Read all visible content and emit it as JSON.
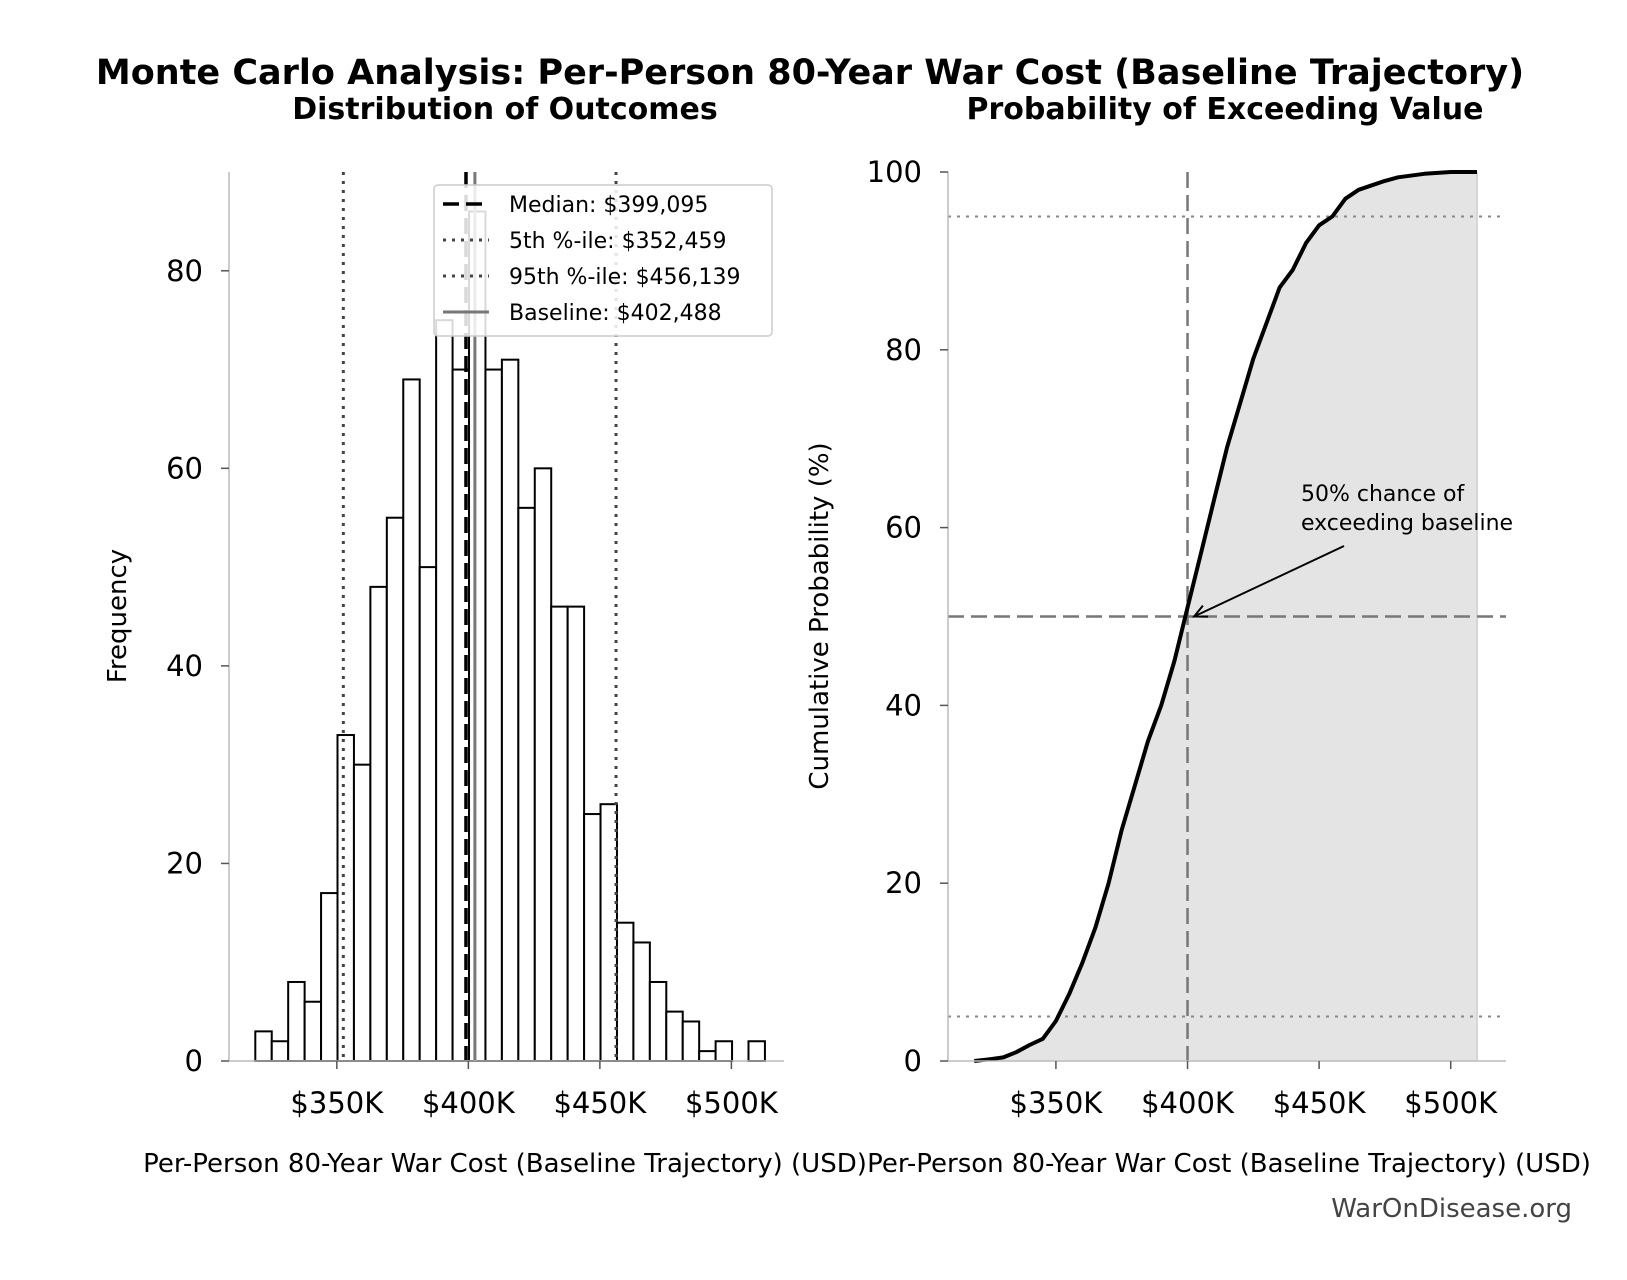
{
  "suptitle": "Monte Carlo Analysis: Per-Person 80-Year War Cost (Baseline Trajectory)",
  "watermark": "WarOnDisease.org",
  "colors": {
    "median": "#000000",
    "percentile": "#444444",
    "baseline": "#777777",
    "fill": "#e4e4e4",
    "reference": "#777777",
    "reference_dotted": "#888888"
  },
  "chart_data": [
    {
      "type": "bar",
      "title": "Distribution of Outcomes",
      "xlabel": "Per-Person 80-Year War Cost (Baseline Trajectory) (USD)",
      "ylabel": "Frequency",
      "xlim": [
        309000,
        520000
      ],
      "ylim": [
        0,
        90
      ],
      "x_ticks": [
        350000,
        400000,
        450000,
        500000
      ],
      "x_tick_labels": [
        "$350K",
        "$400K",
        "$450K",
        "$500K"
      ],
      "y_ticks": [
        0,
        20,
        40,
        60,
        80
      ],
      "y_tick_labels": [
        "0",
        "20",
        "40",
        "60",
        "80"
      ],
      "bin_width": 6250,
      "bins_start": 319000,
      "values": [
        3,
        2,
        8,
        6,
        17,
        33,
        30,
        48,
        55,
        69,
        50,
        75,
        70,
        86,
        70,
        71,
        56,
        60,
        46,
        46,
        25,
        26,
        14,
        12,
        8,
        5,
        4,
        1,
        2,
        0,
        2
      ],
      "reference_lines": [
        {
          "label": "Median: $399,095",
          "x": 399095,
          "style": "dashed"
        },
        {
          "label": "5th %-ile: $352,459",
          "x": 352459,
          "style": "dotted"
        },
        {
          "label": "95th %-ile: $456,139",
          "x": 456139,
          "style": "dotted"
        },
        {
          "label": "Baseline: $402,488",
          "x": 402488,
          "style": "solid"
        }
      ],
      "legend_position": "top-right"
    },
    {
      "type": "area",
      "title": "Probability of Exceeding Value",
      "xlabel": "Per-Person 80-Year War Cost (Baseline Trajectory) (USD)",
      "ylabel": "Cumulative Probability (%)",
      "xlim": [
        309000,
        521000
      ],
      "ylim": [
        0,
        100
      ],
      "x_ticks": [
        350000,
        400000,
        450000,
        500000
      ],
      "x_tick_labels": [
        "$350K",
        "$400K",
        "$450K",
        "$500K"
      ],
      "y_ticks": [
        0,
        20,
        40,
        60,
        80,
        100
      ],
      "y_tick_labels": [
        "0",
        "20",
        "40",
        "60",
        "80",
        "100"
      ],
      "x": [
        319000,
        325000,
        330000,
        335000,
        340000,
        345000,
        350000,
        355000,
        360000,
        365000,
        370000,
        375000,
        380000,
        385000,
        390000,
        395000,
        400000,
        405000,
        410000,
        415000,
        420000,
        425000,
        430000,
        435000,
        440000,
        445000,
        450000,
        455000,
        460000,
        465000,
        470000,
        475000,
        480000,
        490000,
        500000,
        510000
      ],
      "y": [
        0,
        0.2,
        0.4,
        1.0,
        1.8,
        2.5,
        4.5,
        7.5,
        11,
        15,
        20,
        26,
        31,
        36,
        40,
        45,
        51,
        57,
        63,
        69,
        74,
        79,
        83,
        87,
        89,
        92,
        94,
        95,
        97,
        98,
        98.5,
        99,
        99.4,
        99.8,
        100,
        100
      ],
      "reference_lines": [
        {
          "axis": "x",
          "value": 400000,
          "style": "dashed"
        },
        {
          "axis": "y",
          "value": 50,
          "style": "dashed"
        },
        {
          "axis": "y",
          "value": 5,
          "style": "dotted"
        },
        {
          "axis": "y",
          "value": 95,
          "style": "dotted"
        }
      ],
      "annotation": {
        "lines": [
          "50% chance of",
          "exceeding baseline"
        ],
        "target_x": 402488,
        "target_y": 50
      }
    }
  ]
}
